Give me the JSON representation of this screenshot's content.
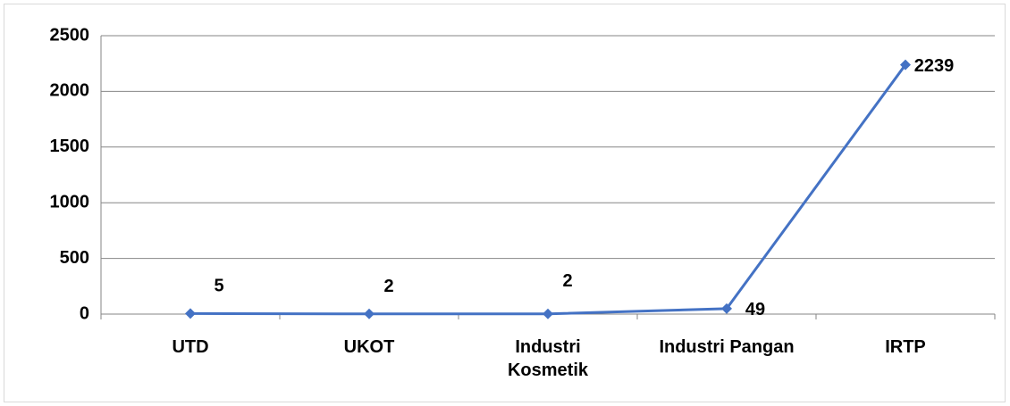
{
  "chart_data": {
    "type": "line",
    "categories": [
      "UTD",
      "UKOT",
      "Industri Kosmetik",
      "Industri Pangan",
      "IRTP"
    ],
    "values": [
      5,
      2,
      2,
      49,
      2239
    ],
    "color": "#4472c4",
    "ylim": [
      0,
      2500
    ],
    "yticks": [
      0,
      500,
      1000,
      1500,
      2000,
      2500
    ],
    "grid": true
  }
}
